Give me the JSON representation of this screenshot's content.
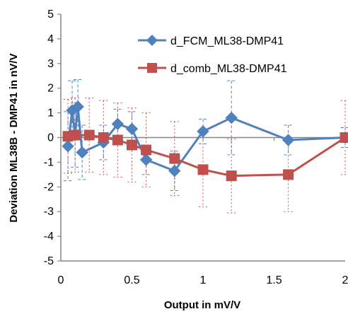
{
  "chart_data": {
    "type": "scatter",
    "xlabel": "Output in mV/V",
    "ylabel": "Deviation ML38B - DMP41 in nV/V",
    "xlim": [
      0,
      2
    ],
    "ylim": [
      -5,
      5
    ],
    "xticks": [
      "0",
      "0.5",
      "1",
      "1.5",
      "2"
    ],
    "xtick_values": [
      0,
      0.5,
      1,
      1.5,
      2
    ],
    "yticks": [
      "5",
      "4",
      "3",
      "2",
      "1",
      "0",
      "-1",
      "-2",
      "-3",
      "-4",
      "-5"
    ],
    "ytick_values": [
      5,
      4,
      3,
      2,
      1,
      0,
      -1,
      -2,
      -3,
      -4,
      -5
    ],
    "grid": false,
    "legend_position": "top-right",
    "series": [
      {
        "name": "d_FCM_ML38-DMP41",
        "color": "#4F81BD",
        "marker": "diamond",
        "error_style": "dashed",
        "points": [
          {
            "x": 0.05,
            "y": -0.35,
            "err": 1.4
          },
          {
            "x": 0.08,
            "y": 1.1,
            "err": 1.2
          },
          {
            "x": 0.1,
            "y": 0.1,
            "err": 1.3
          },
          {
            "x": 0.12,
            "y": 1.25,
            "err": 1.1
          },
          {
            "x": 0.15,
            "y": -0.6,
            "err": 1.1
          },
          {
            "x": 0.3,
            "y": -0.2,
            "err": 0.7
          },
          {
            "x": 0.4,
            "y": 0.55,
            "err": 0.6
          },
          {
            "x": 0.5,
            "y": 0.35,
            "err": 0.7
          },
          {
            "x": 0.6,
            "y": -0.9,
            "err": 0.6
          },
          {
            "x": 0.8,
            "y": -1.35,
            "err": 0.8
          },
          {
            "x": 1.0,
            "y": 0.25,
            "err": 0.5
          },
          {
            "x": 1.2,
            "y": 0.8,
            "err": 1.5
          },
          {
            "x": 1.6,
            "y": -0.1,
            "err": 0.6
          },
          {
            "x": 2.0,
            "y": 0.0,
            "err": 0.4
          }
        ]
      },
      {
        "name": "d_comb_ML38-DMP41",
        "color": "#C0504D",
        "marker": "square",
        "error_style": "dotted",
        "points": [
          {
            "x": 0.05,
            "y": 0.05,
            "err": 1.5
          },
          {
            "x": 0.1,
            "y": 0.1,
            "err": 1.5
          },
          {
            "x": 0.2,
            "y": 0.1,
            "err": 1.5
          },
          {
            "x": 0.3,
            "y": 0.0,
            "err": 1.5
          },
          {
            "x": 0.4,
            "y": -0.1,
            "err": 1.5
          },
          {
            "x": 0.5,
            "y": -0.3,
            "err": 1.5
          },
          {
            "x": 0.6,
            "y": -0.5,
            "err": 1.5
          },
          {
            "x": 0.8,
            "y": -0.85,
            "err": 1.5
          },
          {
            "x": 1.0,
            "y": -1.3,
            "err": 1.5
          },
          {
            "x": 1.2,
            "y": -1.55,
            "err": 1.5
          },
          {
            "x": 1.6,
            "y": -1.5,
            "err": 1.5
          },
          {
            "x": 2.0,
            "y": 0.0,
            "err": 1.5
          }
        ]
      }
    ]
  }
}
